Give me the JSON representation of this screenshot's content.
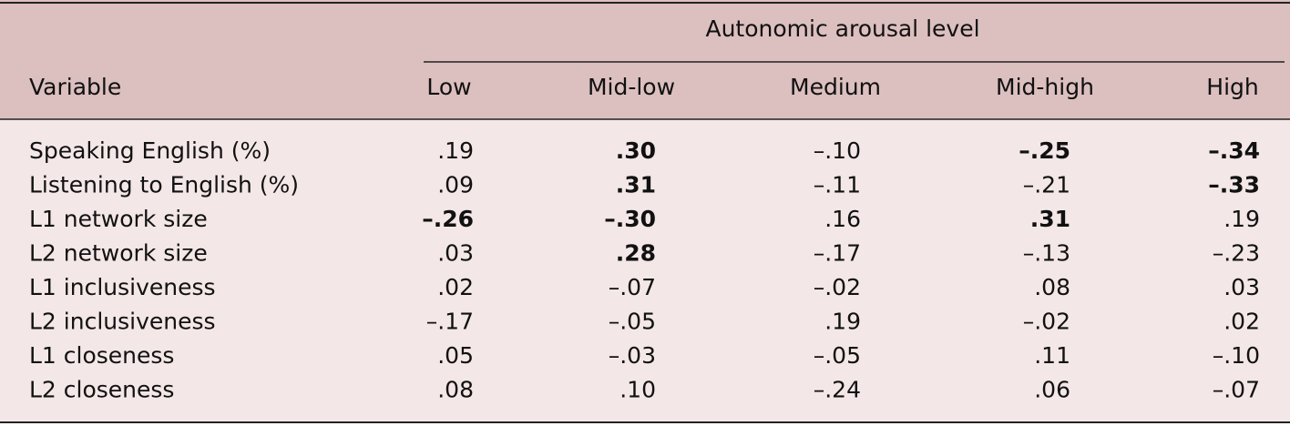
{
  "header": {
    "group": "Autonomic arousal level",
    "columns": [
      "Variable",
      "Low",
      "Mid-low",
      "Medium",
      "Mid-high",
      "High"
    ]
  },
  "table": {
    "rows": [
      {
        "label": "Speaking English (%)",
        "cells": [
          ".19",
          ".30",
          "–.10",
          "–.25",
          "–.34"
        ],
        "bold": [
          1,
          3,
          4
        ]
      },
      {
        "label": "Listening to English (%)",
        "cells": [
          ".09",
          ".31",
          "–.11",
          "–.21",
          "–.33"
        ],
        "bold": [
          1,
          4
        ]
      },
      {
        "label": "L1 network size",
        "cells": [
          "–.26",
          "–.30",
          ".16",
          ".31",
          ".19"
        ],
        "bold": [
          0,
          1,
          3
        ]
      },
      {
        "label": "L2 network size",
        "cells": [
          ".03",
          ".28",
          "–.17",
          "–.13",
          "–.23"
        ],
        "bold": [
          1
        ]
      },
      {
        "label": "L1 inclusiveness",
        "cells": [
          ".02",
          "–.07",
          "–.02",
          ".08",
          ".03"
        ],
        "bold": []
      },
      {
        "label": "L2 inclusiveness",
        "cells": [
          "–.17",
          "–.05",
          ".19",
          "–.02",
          ".02"
        ],
        "bold": []
      },
      {
        "label": "L1 closeness",
        "cells": [
          ".05",
          "–.03",
          "–.05",
          ".11",
          "–.10"
        ],
        "bold": []
      },
      {
        "label": "L2 closeness",
        "cells": [
          ".08",
          ".10",
          "–.24",
          ".06",
          "–.07"
        ],
        "bold": []
      }
    ]
  }
}
